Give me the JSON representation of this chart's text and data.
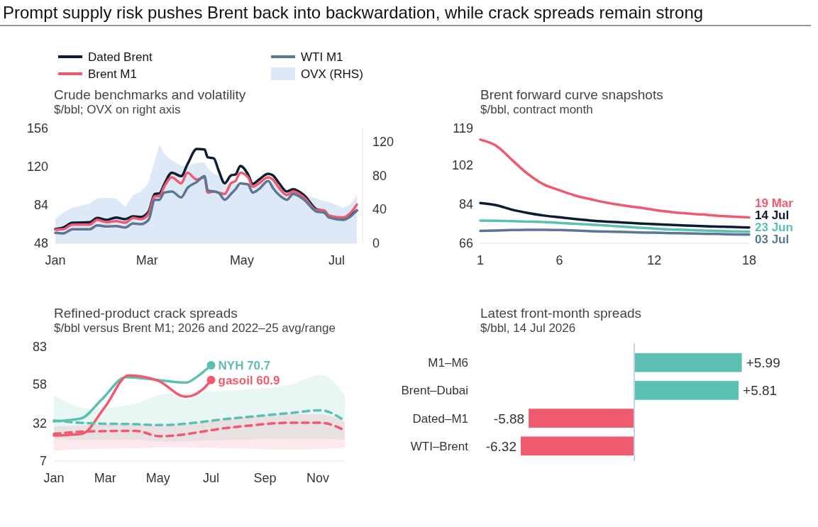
{
  "chart_data": [
    {
      "type": "other",
      "title": "Prompt supply risk pushes Brent back into backwardation, while crack spreads remain strong"
    },
    {
      "type": "line",
      "title": "Crude benchmarks and volatility",
      "subtitle": "$/bbl; OVX on right axis",
      "legend": "top",
      "x": [
        "2026-01-01",
        "2026-01-06",
        "2026-01-12",
        "2026-01-23",
        "2026-01-28",
        "2026-02-03",
        "2026-02-09",
        "2026-02-15",
        "2026-02-20",
        "2026-02-25",
        "2026-03-02",
        "2026-03-06",
        "2026-03-09",
        "2026-03-12",
        "2026-03-17",
        "2026-03-23",
        "2026-03-27",
        "2026-04-02",
        "2026-04-07",
        "2026-04-09",
        "2026-04-13",
        "2026-04-16",
        "2026-04-20",
        "2026-04-24",
        "2026-04-27",
        "2026-04-30",
        "2026-05-05",
        "2026-05-08",
        "2026-05-12",
        "2026-05-18",
        "2026-05-21",
        "2026-05-25",
        "2026-05-30",
        "2026-06-03",
        "2026-06-10",
        "2026-06-18",
        "2026-06-23",
        "2026-06-26",
        "2026-07-05",
        "2026-07-10",
        "2026-07-14"
      ],
      "series": [
        {
          "name": "Dated Brent",
          "color": "#0d1b33",
          "values": [
            61.3,
            62.7,
            67.3,
            67.8,
            71.8,
            70,
            72.2,
            70.7,
            73.3,
            72.7,
            77.8,
            94.4,
            94.9,
            103.3,
            114.4,
            111.1,
            122.2,
            136.7,
            136.2,
            128.9,
            127.8,
            116.7,
            104.4,
            111.8,
            112.7,
            120.7,
            112.7,
            103.8,
            107.8,
            113.3,
            111.8,
            104.4,
            96.7,
            98.9,
            93.3,
            80,
            78.4,
            74,
            70.7,
            74.4,
            78.9
          ]
        },
        {
          "name": "Brent M1",
          "color": "#f05a6e",
          "values": [
            60.7,
            61.1,
            65.5,
            65.5,
            70,
            67.8,
            68.9,
            67.3,
            71.8,
            70.7,
            75.6,
            92.2,
            92.2,
            101.1,
            110,
            104.4,
            114.4,
            107.8,
            110,
            95.6,
            96.7,
            95.6,
            94.4,
            104.4,
            106.7,
            114.4,
            110,
            101.1,
            104.4,
            110,
            107.8,
            100,
            93.3,
            96.7,
            91.1,
            79.3,
            78.9,
            74,
            72.2,
            76.7,
            84.4
          ]
        },
        {
          "name": "WTI M1",
          "color": "#5b7795",
          "values": [
            57.8,
            57.3,
            61.1,
            61.1,
            64.9,
            63.8,
            64.2,
            62.9,
            66.7,
            66,
            70,
            88.9,
            88.9,
            95.6,
            96.7,
            91.1,
            100,
            105.6,
            111.1,
            97.8,
            96.7,
            95.6,
            88.9,
            94.4,
            98.9,
            104.4,
            103.3,
            95.6,
            98.9,
            106.7,
            100,
            93.3,
            88.9,
            94.4,
            88.9,
            77.8,
            76.7,
            72.2,
            70,
            73.3,
            78.9
          ]
        },
        {
          "name": "OVX (RHS)",
          "type": "area",
          "axis": "y2",
          "color": "#dde9f6",
          "values": [
            29,
            36,
            42,
            47,
            53,
            54,
            53,
            43,
            57,
            61,
            72,
            98,
            117,
            106,
            98,
            92,
            91,
            95,
            96,
            89,
            82,
            80,
            71,
            70,
            70,
            72,
            70,
            65,
            70,
            75,
            71,
            64,
            60,
            60,
            57,
            53,
            50,
            49,
            42,
            46,
            57
          ]
        }
      ],
      "xlim": [
        "2026-01-01",
        "2026-07-14"
      ],
      "xticks": [
        {
          "value": "2026-01-01",
          "label": "Jan"
        },
        {
          "value": "2026-03-01",
          "label": "Mar"
        },
        {
          "value": "2026-05-01",
          "label": "May"
        },
        {
          "value": "2026-07-01",
          "label": "Jul"
        }
      ],
      "ylim": [
        48,
        156
      ],
      "yticks": [
        48,
        84,
        120,
        156
      ],
      "y2lim": [
        0,
        136
      ],
      "y2ticks": [
        0,
        40,
        80,
        120
      ]
    },
    {
      "type": "line",
      "title": "Brent forward curve snapshots",
      "subtitle": "$/bbl, contract month",
      "legend": false,
      "x": [
        1,
        2,
        3,
        4,
        5,
        6,
        7,
        8,
        9,
        10,
        11,
        12,
        13,
        14,
        15,
        16,
        17,
        18
      ],
      "series": [
        {
          "name": "19 Mar",
          "color": "#f05a6e",
          "values": [
            113.8,
            111,
            104.5,
            98,
            93.2,
            90.5,
            88,
            86.3,
            84.7,
            83.5,
            82.5,
            81.4,
            80.5,
            79.8,
            79.3,
            78.7,
            78.3,
            77.9
          ]
        },
        {
          "name": "14 Jul",
          "color": "#0d1b33",
          "values": [
            84.6,
            83.6,
            81.5,
            80,
            78.8,
            78,
            77.2,
            76.5,
            76,
            75.6,
            75.2,
            74.8,
            74.5,
            74.2,
            73.9,
            73.7,
            73.5,
            73.3
          ]
        },
        {
          "name": "23 Jun",
          "color": "#5bbfb2",
          "values": [
            76.5,
            76.4,
            76.2,
            76,
            75.8,
            75.4,
            75,
            74.6,
            74.2,
            73.7,
            73.2,
            72.8,
            72.4,
            72.2,
            71.9,
            71.7,
            71.5,
            71.3
          ]
        },
        {
          "name": "03 Jul",
          "color": "#5b7795",
          "values": [
            71.7,
            71.9,
            72.1,
            72.2,
            72.2,
            72.1,
            71.9,
            71.6,
            71.4,
            71.2,
            71,
            70.9,
            70.7,
            70.6,
            70.4,
            70.3,
            70.1,
            70
          ]
        }
      ],
      "xlim": [
        1,
        18
      ],
      "xticks": [
        1,
        6,
        12,
        18
      ],
      "ylim": [
        66,
        119
      ],
      "yticks": [
        66,
        84,
        102,
        119
      ]
    },
    {
      "type": "line",
      "title": "Refined-product crack spreads",
      "subtitle": "$/bbl versus Brent M1; 2026 and 2022–25 avg/range",
      "legend": false,
      "series": [
        {
          "color": "#5bbfb2",
          "x": [
            "2026-01-01",
            "2026-02-01",
            "2026-02-25",
            "2026-03-25",
            "2026-04-27",
            "2026-06-02",
            "2026-06-16",
            "2026-07-01"
          ],
          "values": [
            33.4,
            35.3,
            47.9,
            62.8,
            61.2,
            59.2,
            63.6,
            70.7
          ]
        },
        {
          "color": "#f05a6e",
          "x": [
            "2026-01-01",
            "2026-02-02",
            "2026-03-01",
            "2026-03-28",
            "2026-05-01",
            "2026-06-02",
            "2026-06-22",
            "2026-07-01"
          ],
          "values": [
            24,
            25.1,
            43.2,
            64,
            60.4,
            49.8,
            55,
            60.9
          ]
        },
        {
          "color": "#5bbfb2",
          "line_style": "dashed",
          "x": [
            "2026-01-01",
            "2026-02-11",
            "2026-04-05",
            "2026-05-03",
            "2026-07-24",
            "2026-10-01",
            "2026-11-04",
            "2026-12-02"
          ],
          "values": [
            34,
            32.1,
            31.5,
            30.9,
            35.3,
            39,
            40.8,
            33.7
          ],
          "lower": [
            22,
            21,
            21,
            20,
            21,
            22,
            22,
            21
          ],
          "upper": [
            50.7,
            42,
            45,
            51,
            54,
            58,
            64.4,
            51
          ]
        },
        {
          "color": "#f05a6e",
          "line_style": "dashed",
          "x": [
            "2026-01-01",
            "2026-02-11",
            "2026-04-05",
            "2026-05-03",
            "2026-07-24",
            "2026-10-01",
            "2026-11-04",
            "2026-12-02"
          ],
          "values": [
            25.1,
            26.7,
            27.1,
            23.5,
            29.3,
            32.5,
            32.5,
            27.4
          ],
          "lower": [
            14,
            15,
            15.5,
            16,
            15.5,
            14.5,
            15,
            16
          ],
          "upper": [
            30,
            31,
            32,
            30,
            35,
            38,
            38,
            33
          ]
        }
      ],
      "annotations": [
        {
          "text": "NYH 70.7",
          "x": "2026-07-01",
          "y": 70.7
        },
        {
          "text": "gasoil 60.9",
          "x": "2026-07-01",
          "y": 60.9
        }
      ],
      "xlim": [
        "2026-01-01",
        "2026-12-02"
      ],
      "xticks": [
        {
          "value": "2026-01-01",
          "label": "Jan"
        },
        {
          "value": "2026-03-01",
          "label": "Mar"
        },
        {
          "value": "2026-05-01",
          "label": "May"
        },
        {
          "value": "2026-07-01",
          "label": "Jul"
        },
        {
          "value": "2026-09-01",
          "label": "Sep"
        },
        {
          "value": "2026-11-01",
          "label": "Nov"
        }
      ],
      "ylim": [
        7,
        83
      ],
      "yticks": [
        7,
        32,
        58,
        83
      ]
    },
    {
      "type": "bar",
      "orientation": "horizontal",
      "title": "Latest front-month spreads",
      "subtitle": "$/bbl, 14 Jul 2026",
      "categories": [
        "M1–M6",
        "Brent–Dubai",
        "Dated–M1",
        "WTI–Brent"
      ],
      "values": [
        5.99,
        5.81,
        -5.88,
        -6.32
      ],
      "colors": [
        "#5bbfb2",
        "#5bbfb2",
        "#f05a6e",
        "#f05a6e"
      ],
      "value_labels": [
        "+5.99",
        "+5.81",
        "-5.88",
        "-6.32"
      ]
    }
  ]
}
